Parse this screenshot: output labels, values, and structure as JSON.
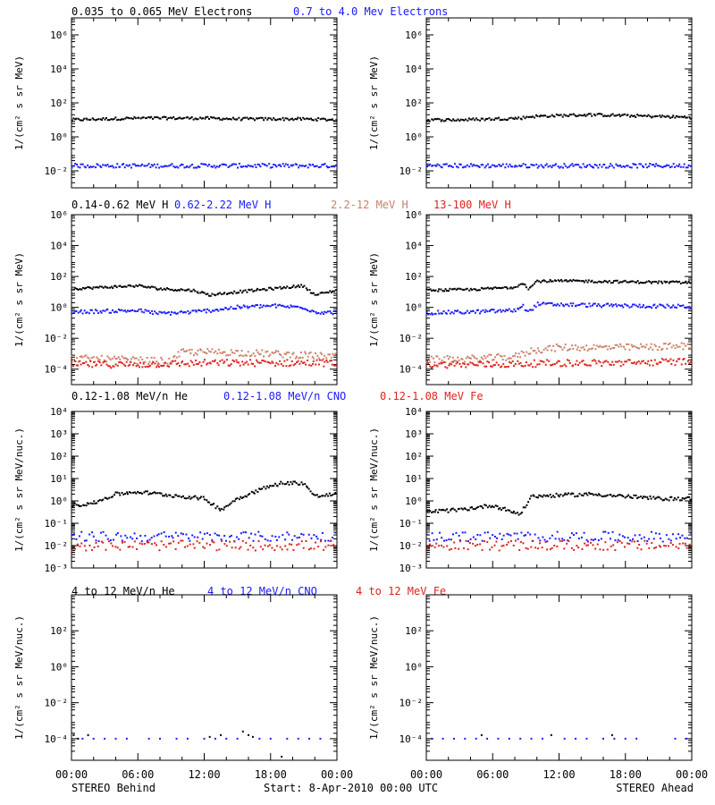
{
  "colors": {
    "black": "#000000",
    "blue": "#1a1aff",
    "brown": "#c8826a",
    "red": "#e0231c",
    "axis": "#000000"
  },
  "footer": {
    "tick_labels": [
      "00:00",
      "06:00",
      "12:00",
      "18:00",
      "00:00"
    ],
    "left": "STEREO Behind",
    "center": "Start:  8-Apr-2010 00:00 UTC",
    "right": "STEREO Ahead"
  },
  "chart_data": [
    {
      "type": "scatter",
      "row_title": [
        {
          "text": "0.035 to 0.065 MeV Electrons",
          "color": "black"
        },
        {
          "text": "0.7 to 4.0 Mev Electrons",
          "color": "blue"
        }
      ],
      "ylabel": "1/(cm² s sr MeV)",
      "yscale": "log",
      "ylim_exp": [
        -3,
        7
      ],
      "yticks": [
        {
          "exp": 6,
          "label": "10⁶"
        },
        {
          "exp": 4,
          "label": "10⁴"
        },
        {
          "exp": 2,
          "label": "10²"
        },
        {
          "exp": 0,
          "label": "10⁰"
        },
        {
          "exp": -2,
          "label": "10⁻²"
        }
      ],
      "xlim_hours": [
        0,
        24
      ],
      "panels": [
        {
          "spacecraft": "STEREO Behind",
          "series": [
            {
              "name": "0.035 to 0.065 MeV Electrons",
              "color": "black",
              "x_hours": [
                0,
                3,
                6,
                9,
                12,
                15,
                18,
                21,
                24
              ],
              "log10_flux": [
                1.0,
                1.05,
                1.1,
                1.1,
                1.1,
                1.05,
                1.05,
                1.05,
                1.0
              ]
            },
            {
              "name": "0.7 to 4.0 Mev Electrons",
              "color": "blue",
              "x_hours": [
                0,
                6,
                12,
                18,
                24
              ],
              "log10_flux": [
                -1.7,
                -1.7,
                -1.7,
                -1.7,
                -1.7
              ]
            }
          ]
        },
        {
          "spacecraft": "STEREO Ahead",
          "series": [
            {
              "name": "0.035 to 0.065 MeV Electrons",
              "color": "black",
              "x_hours": [
                0,
                3,
                6,
                8.5,
                9.5,
                12,
                15,
                18,
                21,
                24
              ],
              "log10_flux": [
                1.0,
                1.0,
                1.05,
                1.1,
                1.2,
                1.25,
                1.3,
                1.25,
                1.2,
                1.15
              ]
            },
            {
              "name": "0.7 to 4.0 Mev Electrons",
              "color": "blue",
              "x_hours": [
                0,
                6,
                12,
                18,
                24
              ],
              "log10_flux": [
                -1.7,
                -1.7,
                -1.7,
                -1.7,
                -1.7
              ]
            }
          ]
        }
      ]
    },
    {
      "type": "scatter",
      "row_title": [
        {
          "text": "0.14-0.62 MeV H",
          "color": "black"
        },
        {
          "text": "0.62-2.22 MeV H",
          "color": "blue"
        },
        {
          "text": "2.2-12 MeV H",
          "color": "brown"
        },
        {
          "text": "13-100 MeV H",
          "color": "red"
        }
      ],
      "ylabel": "1/(cm² s sr MeV)",
      "yscale": "log",
      "ylim_exp": [
        -5,
        6
      ],
      "yticks": [
        {
          "exp": 6,
          "label": "10⁶"
        },
        {
          "exp": 4,
          "label": "10⁴"
        },
        {
          "exp": 2,
          "label": "10²"
        },
        {
          "exp": 0,
          "label": "10⁰"
        },
        {
          "exp": -2,
          "label": "10⁻²"
        },
        {
          "exp": -4,
          "label": "10⁻⁴"
        }
      ],
      "xlim_hours": [
        0,
        24
      ],
      "panels": [
        {
          "spacecraft": "STEREO Behind",
          "series": [
            {
              "name": "0.14-0.62 MeV H",
              "color": "black",
              "x_hours": [
                0,
                3,
                6,
                8,
                11,
                12.5,
                15,
                18,
                21,
                22,
                24
              ],
              "log10_flux": [
                1.2,
                1.3,
                1.4,
                1.2,
                1.1,
                0.8,
                1.0,
                1.2,
                1.4,
                0.8,
                1.1
              ]
            },
            {
              "name": "0.62-2.22 MeV H",
              "color": "blue",
              "x_hours": [
                0,
                3,
                6,
                8,
                11,
                12.5,
                15,
                18,
                21,
                22,
                24
              ],
              "log10_flux": [
                -0.3,
                -0.25,
                -0.2,
                -0.4,
                -0.3,
                -0.2,
                0.0,
                0.1,
                0.0,
                -0.3,
                -0.35
              ]
            },
            {
              "name": "2.2-12 MeV H",
              "color": "brown",
              "x_hours": [
                0,
                5,
                9,
                10,
                14,
                18,
                24
              ],
              "log10_flux": [
                -3.3,
                -3.4,
                -3.5,
                -2.9,
                -2.9,
                -3.0,
                -3.2
              ]
            },
            {
              "name": "13-100 MeV H",
              "color": "red",
              "x_hours": [
                0,
                6,
                12,
                18,
                24
              ],
              "log10_flux": [
                -3.7,
                -3.7,
                -3.6,
                -3.6,
                -3.6
              ]
            }
          ]
        },
        {
          "spacecraft": "STEREO Ahead",
          "series": [
            {
              "name": "0.14-0.62 MeV H",
              "color": "black",
              "x_hours": [
                0,
                4,
                8,
                8.7,
                9.3,
                10,
                14,
                18,
                24
              ],
              "log10_flux": [
                1.1,
                1.15,
                1.3,
                1.6,
                1.2,
                1.7,
                1.7,
                1.65,
                1.6
              ]
            },
            {
              "name": "0.62-2.22 MeV H",
              "color": "blue",
              "x_hours": [
                0,
                4,
                8,
                8.7,
                9.3,
                10,
                14,
                18,
                24
              ],
              "log10_flux": [
                -0.35,
                -0.3,
                -0.2,
                0.1,
                -0.3,
                0.2,
                0.15,
                0.1,
                0.05
              ]
            },
            {
              "name": "2.2-12 MeV H",
              "color": "brown",
              "x_hours": [
                0,
                5,
                8,
                9.5,
                12,
                18,
                24
              ],
              "log10_flux": [
                -3.4,
                -3.3,
                -3.2,
                -2.8,
                -2.6,
                -2.6,
                -2.5
              ]
            },
            {
              "name": "13-100 MeV H",
              "color": "red",
              "x_hours": [
                0,
                6,
                12,
                18,
                24
              ],
              "log10_flux": [
                -3.7,
                -3.7,
                -3.6,
                -3.6,
                -3.5
              ]
            }
          ]
        }
      ]
    },
    {
      "type": "scatter",
      "row_title": [
        {
          "text": "0.12-1.08 MeV/n He",
          "color": "black"
        },
        {
          "text": "0.12-1.08 MeV/n CNO",
          "color": "blue"
        },
        {
          "text": "0.12-1.08 MeV Fe",
          "color": "red"
        }
      ],
      "ylabel": "1/(cm² s sr MeV/nuc.)",
      "yscale": "log",
      "ylim_exp": [
        -3,
        4
      ],
      "yticks": [
        {
          "exp": 4,
          "label": "10⁴"
        },
        {
          "exp": 3,
          "label": "10³"
        },
        {
          "exp": 2,
          "label": "10²"
        },
        {
          "exp": 1,
          "label": "10¹"
        },
        {
          "exp": 0,
          "label": "10⁰"
        },
        {
          "exp": -1,
          "label": "10⁻¹"
        },
        {
          "exp": -2,
          "label": "10⁻²"
        },
        {
          "exp": -3,
          "label": "10⁻³"
        }
      ],
      "xlim_hours": [
        0,
        24
      ],
      "panels": [
        {
          "spacecraft": "STEREO Behind",
          "series": [
            {
              "name": "0.12-1.08 MeV/n He",
              "color": "black",
              "x_hours": [
                0,
                2,
                4,
                6,
                8,
                10,
                12,
                13.5,
                15,
                17,
                19,
                21,
                22,
                24
              ],
              "log10_flux": [
                -0.2,
                -0.1,
                0.3,
                0.4,
                0.3,
                0.2,
                0.1,
                -0.4,
                0.1,
                0.5,
                0.8,
                0.8,
                0.2,
                0.3
              ]
            },
            {
              "name": "0.12-1.08 MeV/n CNO",
              "color": "blue",
              "x_hours": [
                0,
                6,
                12,
                18,
                24
              ],
              "log10_flux": [
                -1.6,
                -1.6,
                -1.6,
                -1.6,
                -1.6
              ]
            },
            {
              "name": "0.12-1.08 MeV Fe",
              "color": "red",
              "x_hours": [
                0,
                6,
                12,
                18,
                24
              ],
              "log10_flux": [
                -2.0,
                -2.0,
                -2.0,
                -2.0,
                -2.0
              ]
            }
          ]
        },
        {
          "spacecraft": "STEREO Ahead",
          "series": [
            {
              "name": "0.12-1.08 MeV/n He",
              "color": "black",
              "x_hours": [
                0,
                3,
                6,
                8.5,
                9.5,
                12,
                15,
                18,
                21,
                24
              ],
              "log10_flux": [
                -0.5,
                -0.4,
                -0.2,
                -0.6,
                0.2,
                0.25,
                0.3,
                0.2,
                0.1,
                0.1
              ]
            },
            {
              "name": "0.12-1.08 MeV/n CNO",
              "color": "blue",
              "x_hours": [
                0,
                6,
                12,
                18,
                24
              ],
              "log10_flux": [
                -1.6,
                -1.6,
                -1.6,
                -1.6,
                -1.6
              ]
            },
            {
              "name": "0.12-1.08 MeV Fe",
              "color": "red",
              "x_hours": [
                0,
                6,
                12,
                18,
                24
              ],
              "log10_flux": [
                -2.0,
                -2.0,
                -2.0,
                -2.0,
                -2.0
              ]
            }
          ]
        }
      ]
    },
    {
      "type": "scatter",
      "row_title": [
        {
          "text": "4 to 12 MeV/n He",
          "color": "black"
        },
        {
          "text": "4 to 12 MeV/n CNO",
          "color": "blue"
        },
        {
          "text": "4 to 12 MeV Fe",
          "color": "red"
        }
      ],
      "ylabel": "1/(cm² s sr MeV/nuc.)",
      "yscale": "log",
      "ylim_exp": [
        -5.2,
        4
      ],
      "yticks": [
        {
          "exp": 2,
          "label": "10²"
        },
        {
          "exp": 0,
          "label": "10⁰"
        },
        {
          "exp": -2,
          "label": "10⁻²"
        },
        {
          "exp": -4,
          "label": "10⁻⁴"
        }
      ],
      "xlim_hours": [
        0,
        24
      ],
      "panels": [
        {
          "spacecraft": "STEREO Behind",
          "series": [
            {
              "name": "4 to 12 MeV/n He",
              "color": "black",
              "x_hours": [
                0.2,
                0.6,
                1.5,
                12.5,
                13.5,
                15.5,
                16,
                16.4,
                19
              ],
              "log10_flux": [
                -3.8,
                -4.0,
                -3.8,
                -3.9,
                -3.8,
                -3.6,
                -3.8,
                -3.9,
                -5.0
              ]
            },
            {
              "name": "4 to 12 MeV/n CNO",
              "color": "blue",
              "x_hours": [
                1,
                2,
                3,
                4,
                5,
                7,
                8,
                9.5,
                10.5,
                12,
                13,
                14,
                15,
                17,
                18,
                19.5,
                20.5,
                21.5,
                22.5
              ],
              "log10_flux": [
                -4,
                -4,
                -4,
                -4,
                -4,
                -4,
                -4,
                -4,
                -4,
                -4,
                -4,
                -4,
                -4,
                -4,
                -4,
                -4,
                -4,
                -4,
                -4
              ]
            }
          ]
        },
        {
          "spacecraft": "STEREO Ahead",
          "series": [
            {
              "name": "4 to 12 MeV/n He",
              "color": "black",
              "x_hours": [
                5,
                11.3,
                16.8
              ],
              "log10_flux": [
                -3.8,
                -3.8,
                -3.8
              ]
            },
            {
              "name": "4 to 12 MeV/n CNO",
              "color": "blue",
              "x_hours": [
                0.5,
                1.5,
                2.5,
                3.5,
                4.5,
                5.5,
                6.5,
                7.5,
                8.5,
                9.5,
                10.5,
                12.5,
                13.5,
                14.5,
                16,
                17,
                18,
                19,
                22.5,
                23.5
              ],
              "log10_flux": [
                -4,
                -4,
                -4,
                -4,
                -4,
                -4,
                -4,
                -4,
                -4,
                -4,
                -4,
                -4,
                -4,
                -4,
                -4,
                -4,
                -4,
                -4,
                -4,
                -4
              ]
            }
          ]
        }
      ]
    }
  ]
}
